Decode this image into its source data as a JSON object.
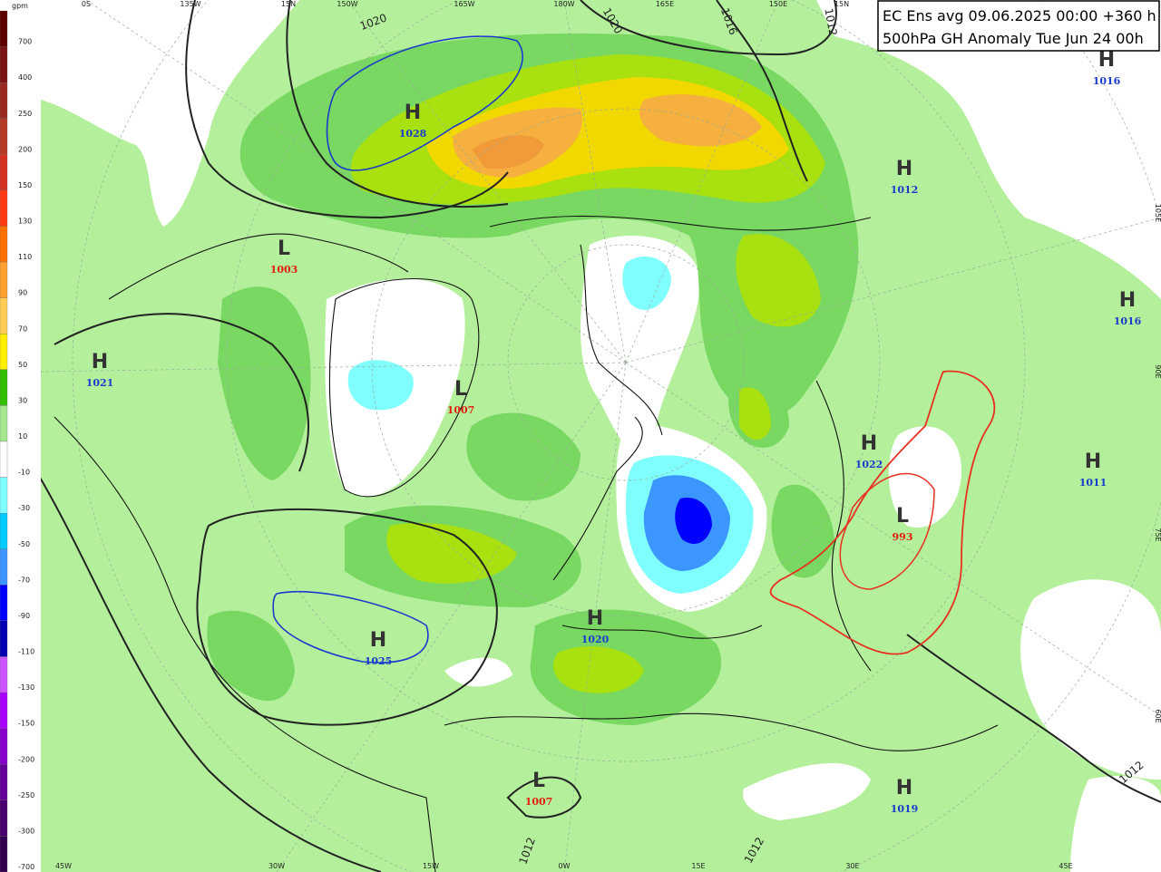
{
  "header": {
    "line1": "EC Ens avg 09.06.2025 00:00 +360 h",
    "line2": "500hPa GH Anomaly Tue Jun 24 00h"
  },
  "legend": {
    "unit": "gpm",
    "levels": [
      700,
      400,
      250,
      200,
      150,
      130,
      110,
      90,
      70,
      50,
      30,
      10,
      -10,
      -30,
      -50,
      -70,
      -90,
      -110,
      -130,
      -150,
      -200,
      -250,
      -300,
      -700
    ],
    "colors": [
      "#5c0000",
      "#7a1414",
      "#982820",
      "#b53a28",
      "#d63020",
      "#ff3a10",
      "#ff7000",
      "#ffa030",
      "#ffcc55",
      "#ffee00",
      "#33c000",
      "#a6e890",
      "#ffffff",
      "#80ffff",
      "#00ccff",
      "#3c96ff",
      "#0000ff",
      "#0000b0",
      "#cc55ff",
      "#aa00ff",
      "#8800cc",
      "#66009a",
      "#4a006e",
      "#330050"
    ]
  },
  "centers": [
    {
      "letter": "H",
      "value": "1028",
      "kind": "high"
    },
    {
      "letter": "H",
      "value": "1016",
      "kind": "high"
    },
    {
      "letter": "H",
      "value": "1012",
      "kind": "high"
    },
    {
      "letter": "L",
      "value": "1003",
      "kind": "low"
    },
    {
      "letter": "H",
      "value": "1021",
      "kind": "high"
    },
    {
      "letter": "L",
      "value": "1007",
      "kind": "low"
    },
    {
      "letter": "H",
      "value": "1016",
      "kind": "high"
    },
    {
      "letter": "H",
      "value": "1022",
      "kind": "high"
    },
    {
      "letter": "H",
      "value": "1011",
      "kind": "high"
    },
    {
      "letter": "L",
      "value": "993",
      "kind": "low"
    },
    {
      "letter": "H",
      "value": "1025",
      "kind": "high"
    },
    {
      "letter": "H",
      "value": "1020",
      "kind": "high"
    },
    {
      "letter": "L",
      "value": "1007",
      "kind": "low"
    },
    {
      "letter": "H",
      "value": "1019",
      "kind": "high"
    }
  ],
  "isobar_labels": [
    "1020",
    "1020",
    "1016",
    "1012",
    "1012",
    "1012",
    "1012"
  ],
  "edge_labels": {
    "top": [
      "0S",
      "135W",
      "15N",
      "150W",
      "165W",
      "180W",
      "165E",
      "150E",
      "15N"
    ],
    "bottom": [
      "45W",
      "30W",
      "15W",
      "0W",
      "15E",
      "30E",
      "45E"
    ],
    "right": [
      "105E",
      "90E",
      "75E",
      "60E"
    ]
  }
}
